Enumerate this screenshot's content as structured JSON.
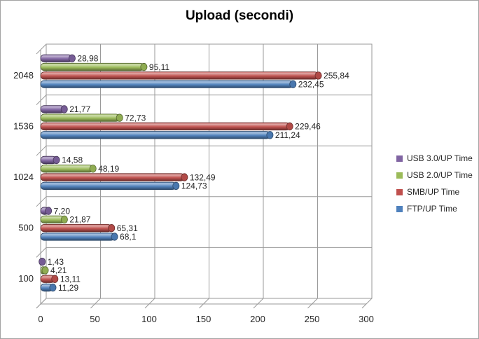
{
  "window": {
    "background": "#ffffff",
    "border_color": "#a3a3a3"
  },
  "chart_data": {
    "type": "bar",
    "orientation": "horizontal",
    "style": "3d-cylinder",
    "title": "Upload (secondi)",
    "categories": [
      "2048",
      "1536",
      "1024",
      "500",
      "100"
    ],
    "series": [
      {
        "name": "USB 3.0/UP Time",
        "color": "#8064a2",
        "values": [
          28.98,
          21.77,
          14.58,
          7.2,
          1.43
        ],
        "labels": [
          "28,98",
          "21,77",
          "14,58",
          "7,20",
          "1,43"
        ]
      },
      {
        "name": "USB 2.0/UP Time",
        "color": "#9bbb59",
        "values": [
          95.11,
          72.73,
          48.19,
          21.87,
          4.21
        ],
        "labels": [
          "95,11",
          "72,73",
          "48,19",
          "21,87",
          "4,21"
        ]
      },
      {
        "name": "SMB/UP Time",
        "color": "#c0504d",
        "values": [
          255.84,
          229.46,
          132.49,
          65.31,
          13.11
        ],
        "labels": [
          "255,84",
          "229,46",
          "132,49",
          "65,31",
          "13,11"
        ]
      },
      {
        "name": "FTP/UP Time",
        "color": "#4f81bd",
        "values": [
          232.45,
          211.24,
          124.73,
          68.1,
          11.29
        ],
        "labels": [
          "232,45",
          "211,24",
          "124,73",
          "68,1",
          "11,29"
        ]
      }
    ],
    "x_axis": {
      "min": 0,
      "max": 300,
      "tick_step": 50,
      "tick_labels": [
        "0",
        "50",
        "100",
        "150",
        "200",
        "250",
        "300"
      ]
    },
    "grid": true,
    "legend_position": "right",
    "grid_color": "#9a9a9a",
    "text_color": "#262626",
    "title_color": "#000000"
  }
}
